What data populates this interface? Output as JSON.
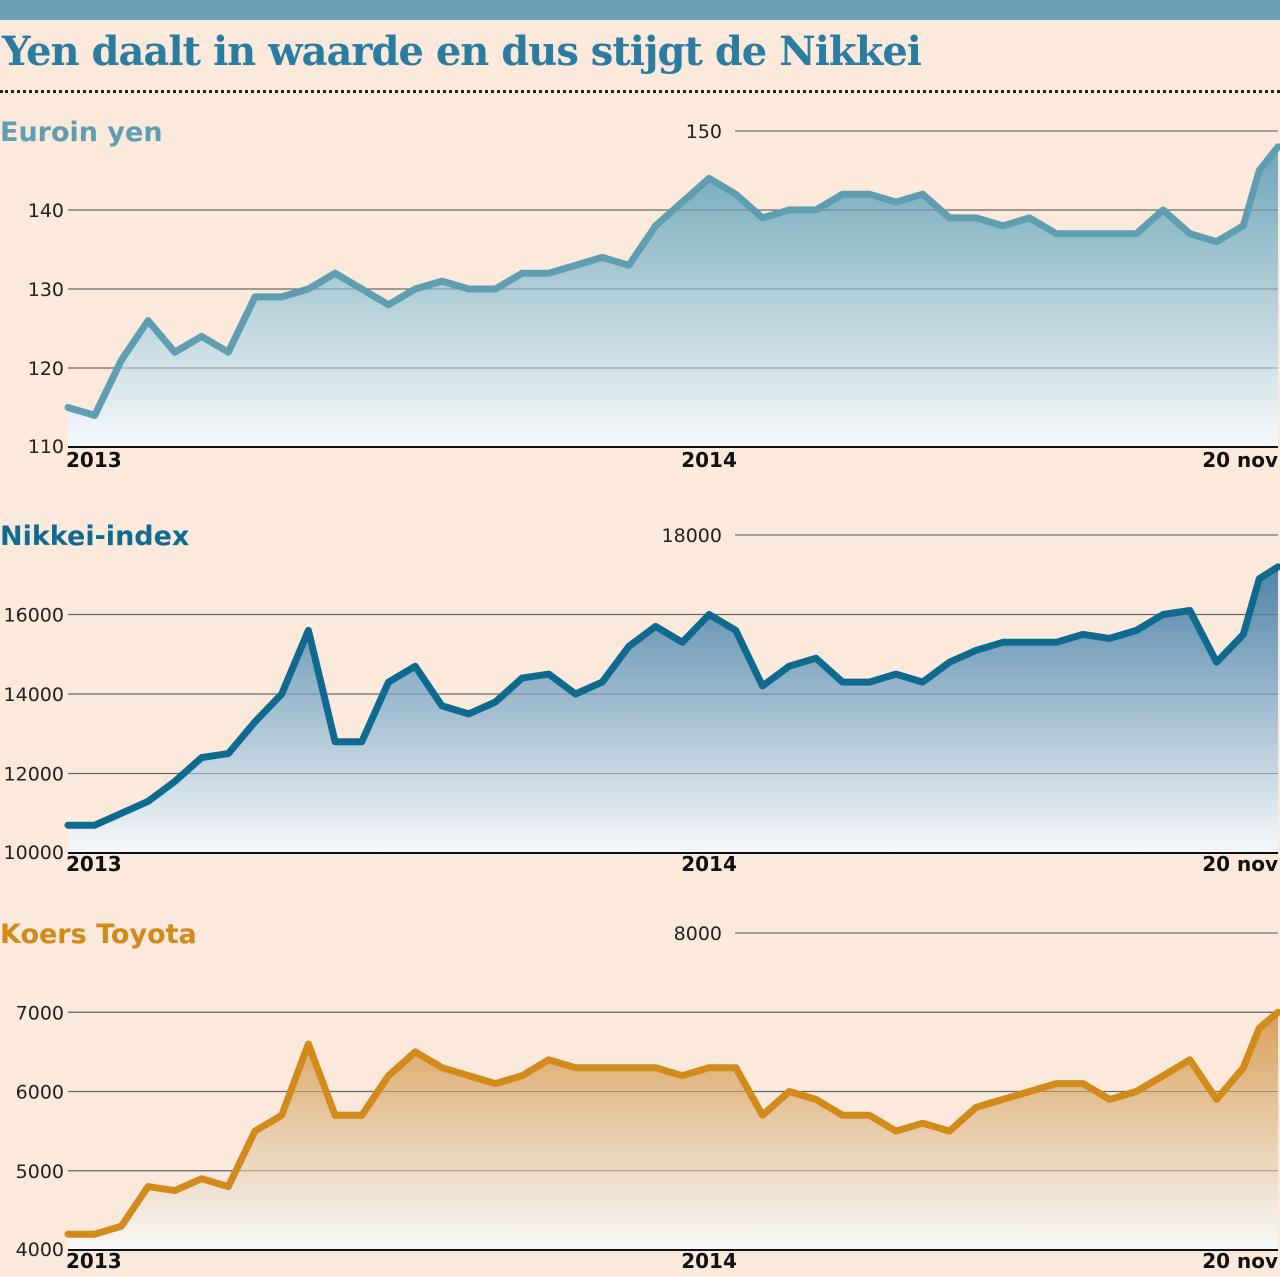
{
  "title": "Yen daalt in waarde en dus stijgt de Nikkei",
  "chart_data": [
    {
      "type": "area",
      "title": "Euroin yen",
      "xlabel": "",
      "ylabel": "",
      "x_unit": "months since Jan 2013",
      "x_ticks": [
        {
          "x": 0,
          "label": "2013"
        },
        {
          "x": 12,
          "label": "2014"
        },
        {
          "x": 22.65,
          "label": "20 nov"
        }
      ],
      "ylim": [
        110,
        150
      ],
      "y_ticks": [
        110,
        120,
        130,
        140,
        150
      ],
      "color": "#5f9db0",
      "fill": "#6ea6b8",
      "x": [
        0,
        0.5,
        1,
        1.5,
        2,
        2.5,
        3,
        3.5,
        4,
        4.5,
        5,
        5.5,
        6,
        6.5,
        7,
        7.5,
        8,
        8.5,
        9,
        9.5,
        10,
        10.5,
        11,
        11.5,
        12,
        12.5,
        13,
        13.5,
        14,
        14.5,
        15,
        15.5,
        16,
        16.5,
        17,
        17.5,
        18,
        18.5,
        19,
        19.5,
        20,
        20.5,
        21,
        21.5,
        22,
        22.3,
        22.65
      ],
      "values": [
        115,
        114,
        121,
        126,
        122,
        124,
        122,
        129,
        129,
        130,
        132,
        130,
        128,
        130,
        131,
        130,
        130,
        132,
        132,
        133,
        134,
        133,
        138,
        141,
        144,
        142,
        139,
        140,
        140,
        142,
        142,
        141,
        142,
        139,
        139,
        138,
        139,
        137,
        137,
        137,
        137,
        140,
        137,
        136,
        138,
        145,
        148
      ]
    },
    {
      "type": "area",
      "title": "Nikkei-index",
      "xlabel": "",
      "ylabel": "",
      "x_unit": "months since Jan 2013",
      "x_ticks": [
        {
          "x": 0,
          "label": "2013"
        },
        {
          "x": 12,
          "label": "2014"
        },
        {
          "x": 22.65,
          "label": "20 nov"
        }
      ],
      "ylim": [
        10000,
        18000
      ],
      "y_ticks": [
        10000,
        12000,
        14000,
        16000,
        18000
      ],
      "color": "#0f6a8f",
      "fill": "#4f84a8",
      "x": [
        0,
        0.5,
        1,
        1.5,
        2,
        2.5,
        3,
        3.5,
        4,
        4.5,
        5,
        5.5,
        6,
        6.5,
        7,
        7.5,
        8,
        8.5,
        9,
        9.5,
        10,
        10.5,
        11,
        11.5,
        12,
        12.5,
        13,
        13.5,
        14,
        14.5,
        15,
        15.5,
        16,
        16.5,
        17,
        17.5,
        18,
        18.5,
        19,
        19.5,
        20,
        20.5,
        21,
        21.5,
        22,
        22.3,
        22.65
      ],
      "values": [
        10700,
        10700,
        11000,
        11300,
        11800,
        12400,
        12500,
        13300,
        14000,
        15600,
        12800,
        12800,
        14300,
        14700,
        13700,
        13500,
        13800,
        14400,
        14500,
        14000,
        14300,
        15200,
        15700,
        15300,
        16000,
        15600,
        14200,
        14700,
        14900,
        14300,
        14300,
        14500,
        14300,
        14800,
        15100,
        15300,
        15300,
        15300,
        15500,
        15400,
        15600,
        16000,
        16100,
        14800,
        15500,
        16900,
        17200
      ]
    },
    {
      "type": "area",
      "title": "Koers Toyota",
      "xlabel": "",
      "ylabel": "",
      "x_unit": "months since Jan 2013",
      "x_ticks": [
        {
          "x": 0,
          "label": "2013"
        },
        {
          "x": 12,
          "label": "2014"
        },
        {
          "x": 22.65,
          "label": "20 nov"
        }
      ],
      "ylim": [
        4000,
        8000
      ],
      "y_ticks": [
        4000,
        5000,
        6000,
        7000,
        8000
      ],
      "color": "#d28a1a",
      "fill": "#dba05a",
      "x": [
        0,
        0.5,
        1,
        1.5,
        2,
        2.5,
        3,
        3.5,
        4,
        4.5,
        5,
        5.5,
        6,
        6.5,
        7,
        7.5,
        8,
        8.5,
        9,
        9.5,
        10,
        10.5,
        11,
        11.5,
        12,
        12.5,
        13,
        13.5,
        14,
        14.5,
        15,
        15.5,
        16,
        16.5,
        17,
        17.5,
        18,
        18.5,
        19,
        19.5,
        20,
        20.5,
        21,
        21.5,
        22,
        22.3,
        22.65
      ],
      "values": [
        4200,
        4200,
        4300,
        4800,
        4750,
        4900,
        4800,
        5500,
        5700,
        6600,
        5700,
        5700,
        6200,
        6500,
        6300,
        6200,
        6100,
        6200,
        6400,
        6300,
        6300,
        6300,
        6300,
        6200,
        6300,
        6300,
        5700,
        6000,
        5900,
        5700,
        5700,
        5500,
        5600,
        5500,
        5800,
        5900,
        6000,
        6100,
        6100,
        5900,
        6000,
        6200,
        6400,
        5900,
        6300,
        6800,
        7000
      ]
    }
  ]
}
